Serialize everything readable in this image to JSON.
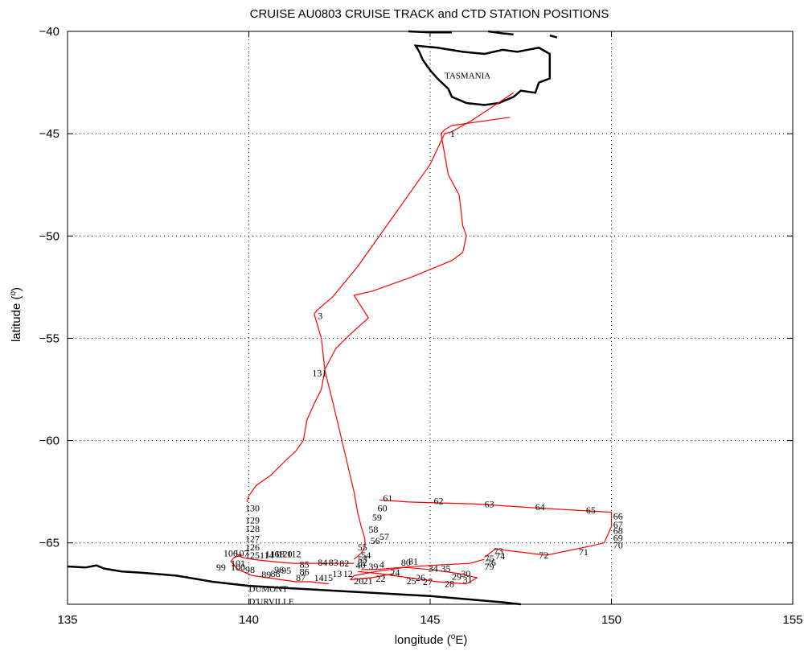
{
  "chart_data": {
    "type": "line",
    "title": "CRUISE AU0803   CRUISE TRACK and CTD STATION POSITIONS",
    "xlabel_main": "longitude (",
    "xlabel_sup": "o",
    "xlabel_end": "E)",
    "ylabel_main": "latitude (",
    "ylabel_sup": "o",
    "ylabel_end": ")",
    "xlim": [
      135,
      155
    ],
    "ylim": [
      -68,
      -40
    ],
    "xticks": [
      135,
      140,
      145,
      150,
      155
    ],
    "yticks": [
      -40,
      -45,
      -50,
      -55,
      -60,
      -65
    ],
    "grid": true,
    "colors": {
      "track": "#ff0000",
      "coast": "#000000",
      "text": "#000000",
      "grid": "#000000"
    },
    "place_labels": [
      {
        "text": "TASMANIA",
        "x": 145.4,
        "y": -42.3
      },
      {
        "text": "DUMONT",
        "x": 140.0,
        "y": -67.4
      },
      {
        "text": "D'URVILLE",
        "x": 140.0,
        "y": -68.0
      }
    ],
    "tasmania_outline": [
      [
        144.6,
        -40.7
      ],
      [
        145.2,
        -40.8
      ],
      [
        145.9,
        -41.0
      ],
      [
        146.5,
        -41.1
      ],
      [
        147.0,
        -40.9
      ],
      [
        147.4,
        -41.0
      ],
      [
        148.0,
        -40.8
      ],
      [
        148.3,
        -41.1
      ],
      [
        148.3,
        -41.8
      ],
      [
        148.3,
        -42.3
      ],
      [
        148.0,
        -42.5
      ],
      [
        147.9,
        -43.0
      ],
      [
        147.5,
        -42.9
      ],
      [
        147.3,
        -43.2
      ],
      [
        146.9,
        -43.5
      ],
      [
        146.5,
        -43.6
      ],
      [
        146.0,
        -43.5
      ],
      [
        145.6,
        -43.2
      ],
      [
        145.5,
        -42.8
      ],
      [
        145.2,
        -42.3
      ],
      [
        145.0,
        -41.9
      ],
      [
        144.8,
        -41.4
      ],
      [
        144.7,
        -41.0
      ],
      [
        144.6,
        -40.7
      ]
    ],
    "mainland_fragments": [
      [
        [
          144.4,
          -40.0
        ],
        [
          145.0,
          -40.05
        ],
        [
          145.6,
          -40.05
        ]
      ],
      [
        [
          146.6,
          -40.0
        ],
        [
          147.0,
          -40.1
        ],
        [
          147.3,
          -40.15
        ]
      ],
      [
        [
          148.3,
          -40.2
        ],
        [
          148.5,
          -40.3
        ]
      ]
    ],
    "antarctic_coast": [
      [
        135.0,
        -66.15
      ],
      [
        135.5,
        -66.2
      ],
      [
        135.8,
        -66.1
      ],
      [
        136.0,
        -66.25
      ],
      [
        136.5,
        -66.4
      ],
      [
        137.0,
        -66.45
      ],
      [
        138.0,
        -66.6
      ],
      [
        139.0,
        -66.9
      ],
      [
        140.0,
        -67.1
      ],
      [
        141.0,
        -67.2
      ],
      [
        142.0,
        -67.3
      ],
      [
        143.0,
        -67.4
      ],
      [
        144.0,
        -67.5
      ],
      [
        145.0,
        -67.6
      ],
      [
        146.0,
        -67.75
      ],
      [
        147.0,
        -67.9
      ],
      [
        147.5,
        -68.0
      ]
    ],
    "series": [
      {
        "id": "outbound",
        "x": [
          147.3,
          146.2,
          145.6,
          145.4,
          145.0,
          144.0,
          143.0,
          142.3,
          141.9,
          141.8
        ],
        "y": [
          -43.0,
          -44.3,
          -44.9,
          -45.0,
          -46.5,
          -49.0,
          -51.5,
          -53.0,
          -53.6,
          -53.8
        ]
      },
      {
        "id": "return",
        "x": [
          147.2,
          145.6,
          145.4,
          145.3,
          145.5,
          145.8,
          145.9,
          146.0,
          145.9,
          145.6,
          144.5,
          143.4,
          142.9,
          143.3,
          142.8,
          142.4,
          142.1,
          142.0,
          141.8,
          141.6,
          141.5,
          141.3,
          141.0,
          140.6,
          140.2,
          140.0,
          139.95
        ],
        "y": [
          -44.2,
          -44.6,
          -44.8,
          -45.0,
          -47.0,
          -48.0,
          -49.5,
          -50.0,
          -50.8,
          -51.2,
          -52.0,
          -52.7,
          -52.9,
          -54.0,
          -54.8,
          -55.5,
          -56.5,
          -57.5,
          -58.2,
          -59.0,
          -60.0,
          -60.5,
          -61.0,
          -61.7,
          -62.2,
          -62.7,
          -63.0
        ]
      },
      {
        "id": "to-shelf",
        "x": [
          141.8,
          142.0,
          142.1,
          142.3,
          142.5,
          142.7,
          142.9,
          143.0,
          143.1,
          143.2,
          143.2,
          143.1,
          142.9
        ],
        "y": [
          -53.8,
          -55.0,
          -56.6,
          -58.0,
          -59.5,
          -61.0,
          -62.5,
          -63.5,
          -64.2,
          -64.8,
          -65.2,
          -65.5,
          -65.8
        ]
      },
      {
        "id": "meridional",
        "x": [
          143.6,
          144.4,
          146.3,
          148.0,
          150.0,
          150.0,
          149.8,
          149.3,
          148.2,
          146.8,
          146.5
        ],
        "y": [
          -62.9,
          -63.0,
          -63.1,
          -63.3,
          -63.5,
          -64.2,
          -65.0,
          -65.2,
          -65.6,
          -65.3,
          -65.7
        ]
      },
      {
        "id": "shelf-east",
        "x": [
          146.5,
          146.1,
          145.0,
          144.2,
          143.5,
          143.1
        ],
        "y": [
          -65.8,
          -66.0,
          -66.1,
          -66.2,
          -66.3,
          -66.3
        ]
      },
      {
        "id": "shelf-zigzag",
        "x": [
          143.0,
          143.6,
          144.4,
          145.2,
          146.0,
          146.3,
          145.8,
          145.0,
          144.3,
          143.5,
          142.9,
          142.8,
          143.4,
          144.0
        ],
        "y": [
          -66.4,
          -66.5,
          -66.7,
          -66.9,
          -67.0,
          -66.7,
          -66.5,
          -66.3,
          -66.2,
          -66.4,
          -66.6,
          -66.8,
          -66.7,
          -66.5
        ]
      },
      {
        "id": "shelf-west",
        "x": [
          142.9,
          142.5,
          141.9,
          141.2,
          140.6,
          140.1,
          139.8,
          139.7,
          139.8
        ],
        "y": [
          -66.0,
          -66.0,
          -66.0,
          -66.0,
          -65.9,
          -65.8,
          -65.7,
          -65.6,
          -65.55
        ]
      },
      {
        "id": "west-leg",
        "x": [
          139.8,
          139.6,
          139.5,
          139.7,
          140.1,
          140.5,
          140.9,
          141.3,
          141.7,
          142.2
        ],
        "y": [
          -65.6,
          -65.7,
          -65.9,
          -66.3,
          -66.6,
          -66.7,
          -66.8,
          -66.9,
          -66.9,
          -67.0
        ]
      }
    ],
    "station_labels": [
      {
        "text": "1",
        "x": 145.55,
        "y": -45.0
      },
      {
        "text": "3",
        "x": 141.9,
        "y": -53.9
      },
      {
        "text": "131",
        "x": 141.75,
        "y": -56.7
      },
      {
        "text": "130",
        "x": 139.9,
        "y": -63.3
      },
      {
        "text": "129",
        "x": 139.9,
        "y": -63.9
      },
      {
        "text": "128",
        "x": 139.9,
        "y": -64.3
      },
      {
        "text": "127",
        "x": 139.9,
        "y": -64.8
      },
      {
        "text": "126",
        "x": 139.9,
        "y": -65.2
      },
      {
        "text": "125",
        "x": 139.9,
        "y": -65.6
      },
      {
        "text": "106",
        "x": 139.3,
        "y": -65.5
      },
      {
        "text": "107",
        "x": 139.6,
        "y": -65.5
      },
      {
        "text": "99",
        "x": 139.1,
        "y": -66.2
      },
      {
        "text": "101",
        "x": 139.5,
        "y": -66.0
      },
      {
        "text": "100",
        "x": 139.5,
        "y": -66.2
      },
      {
        "text": "98",
        "x": 139.9,
        "y": -66.3
      },
      {
        "text": "114",
        "x": 140.3,
        "y": -65.6
      },
      {
        "text": "116",
        "x": 140.45,
        "y": -65.55
      },
      {
        "text": "118",
        "x": 140.6,
        "y": -65.55
      },
      {
        "text": "120",
        "x": 140.8,
        "y": -65.55
      },
      {
        "text": "112",
        "x": 141.05,
        "y": -65.55
      },
      {
        "text": "96",
        "x": 140.7,
        "y": -66.3
      },
      {
        "text": "95",
        "x": 140.9,
        "y": -66.35
      },
      {
        "text": "88",
        "x": 140.6,
        "y": -66.5
      },
      {
        "text": "89",
        "x": 140.35,
        "y": -66.55
      },
      {
        "text": "85",
        "x": 141.4,
        "y": -66.05
      },
      {
        "text": "86",
        "x": 141.4,
        "y": -66.4
      },
      {
        "text": "87",
        "x": 141.3,
        "y": -66.7
      },
      {
        "text": "84",
        "x": 141.9,
        "y": -65.95
      },
      {
        "text": "83",
        "x": 142.2,
        "y": -65.95
      },
      {
        "text": "82",
        "x": 142.5,
        "y": -66.0
      },
      {
        "text": "14",
        "x": 141.8,
        "y": -66.7
      },
      {
        "text": "15",
        "x": 142.05,
        "y": -66.7
      },
      {
        "text": "13",
        "x": 142.3,
        "y": -66.5
      },
      {
        "text": "12",
        "x": 142.6,
        "y": -66.5
      },
      {
        "text": "20",
        "x": 142.9,
        "y": -66.85
      },
      {
        "text": "21",
        "x": 143.15,
        "y": -66.85
      },
      {
        "text": "22",
        "x": 143.5,
        "y": -66.75
      },
      {
        "text": "55",
        "x": 143.0,
        "y": -65.2
      },
      {
        "text": "54",
        "x": 143.1,
        "y": -65.6
      },
      {
        "text": "53",
        "x": 143.0,
        "y": -65.8
      },
      {
        "text": "52",
        "x": 143.0,
        "y": -65.95
      },
      {
        "text": "56",
        "x": 143.35,
        "y": -64.9
      },
      {
        "text": "57",
        "x": 143.6,
        "y": -64.7
      },
      {
        "text": "58",
        "x": 143.3,
        "y": -64.35
      },
      {
        "text": "59",
        "x": 143.4,
        "y": -63.75
      },
      {
        "text": "60",
        "x": 143.55,
        "y": -63.3
      },
      {
        "text": "61",
        "x": 143.7,
        "y": -62.8
      },
      {
        "text": "62",
        "x": 145.1,
        "y": -62.95
      },
      {
        "text": "63",
        "x": 146.5,
        "y": -63.1
      },
      {
        "text": "64",
        "x": 147.9,
        "y": -63.25
      },
      {
        "text": "65",
        "x": 149.3,
        "y": -63.4
      },
      {
        "text": "66",
        "x": 150.05,
        "y": -63.7
      },
      {
        "text": "67",
        "x": 150.05,
        "y": -64.1
      },
      {
        "text": "68",
        "x": 150.05,
        "y": -64.4
      },
      {
        "text": "69",
        "x": 150.05,
        "y": -64.75
      },
      {
        "text": "70",
        "x": 150.05,
        "y": -65.1
      },
      {
        "text": "71",
        "x": 149.1,
        "y": -65.45
      },
      {
        "text": "72",
        "x": 148.0,
        "y": -65.6
      },
      {
        "text": "73",
        "x": 146.75,
        "y": -65.4
      },
      {
        "text": "74",
        "x": 146.8,
        "y": -65.65
      },
      {
        "text": "75",
        "x": 146.5,
        "y": -65.75
      },
      {
        "text": "76",
        "x": 146.55,
        "y": -65.95
      },
      {
        "text": "79",
        "x": 146.5,
        "y": -66.15
      },
      {
        "text": "80",
        "x": 144.2,
        "y": -65.95
      },
      {
        "text": "81",
        "x": 144.4,
        "y": -65.9
      },
      {
        "text": "4",
        "x": 143.6,
        "y": -66.05
      },
      {
        "text": "40",
        "x": 142.95,
        "y": -66.1
      },
      {
        "text": "39",
        "x": 143.3,
        "y": -66.15
      },
      {
        "text": "34",
        "x": 144.95,
        "y": -66.25
      },
      {
        "text": "35",
        "x": 145.3,
        "y": -66.25
      },
      {
        "text": "24",
        "x": 143.9,
        "y": -66.45
      },
      {
        "text": "26",
        "x": 144.6,
        "y": -66.7
      },
      {
        "text": "25",
        "x": 144.35,
        "y": -66.85
      },
      {
        "text": "27",
        "x": 144.8,
        "y": -66.9
      },
      {
        "text": "28",
        "x": 145.4,
        "y": -67.0
      },
      {
        "text": "29",
        "x": 145.6,
        "y": -66.65
      },
      {
        "text": "30",
        "x": 145.85,
        "y": -66.5
      },
      {
        "text": "31",
        "x": 145.9,
        "y": -66.8
      }
    ]
  }
}
